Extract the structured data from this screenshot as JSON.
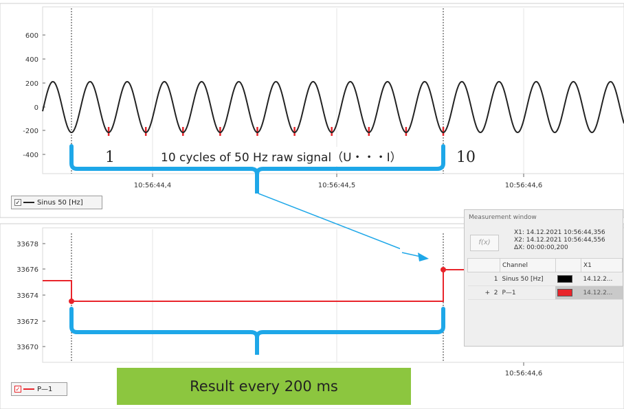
{
  "top_chart": {
    "y_ticks": [
      "600",
      "400",
      "200",
      "0",
      "-200",
      "-400"
    ],
    "x_ticks": [
      "10:56:44,4",
      "10:56:44,5",
      "10:56:44,6"
    ],
    "legend_label": "Sinus 50 [Hz]",
    "annotation": "10 cycles of 50 Hz raw signal（U・・・I）",
    "label_start": "1",
    "label_end": "10",
    "series_color": "#222222",
    "marker_color": "#e8242a"
  },
  "bottom_chart": {
    "y_ticks": [
      "33678",
      "33676",
      "33674",
      "33672",
      "33670"
    ],
    "x_ticks": [
      "10:56:44,6"
    ],
    "legend_label": "P—1",
    "series_color": "#e8242a"
  },
  "measurement_window": {
    "title": "Measurement window",
    "fx_label": "f(x)",
    "x1": "X1:  14.12.2021 10:56:44,356",
    "x2": "X2:  14.12.2021 10:56:44,556",
    "dx": "ΔX:  00:00:00,200",
    "columns": [
      "Channel",
      "X1"
    ],
    "rows": [
      {
        "marker": "",
        "index": "1",
        "channel": "Sinus 50 [Hz]",
        "color": "#000000",
        "value": "14.12.2..."
      },
      {
        "marker": "+",
        "index": "2",
        "channel": "P—1",
        "color": "#e8242a",
        "value": "14.12.2..."
      }
    ]
  },
  "result_text": "Result every 200 ms",
  "colors": {
    "accent_blue": "#1ea7e8",
    "result_green": "#8cc63f"
  }
}
